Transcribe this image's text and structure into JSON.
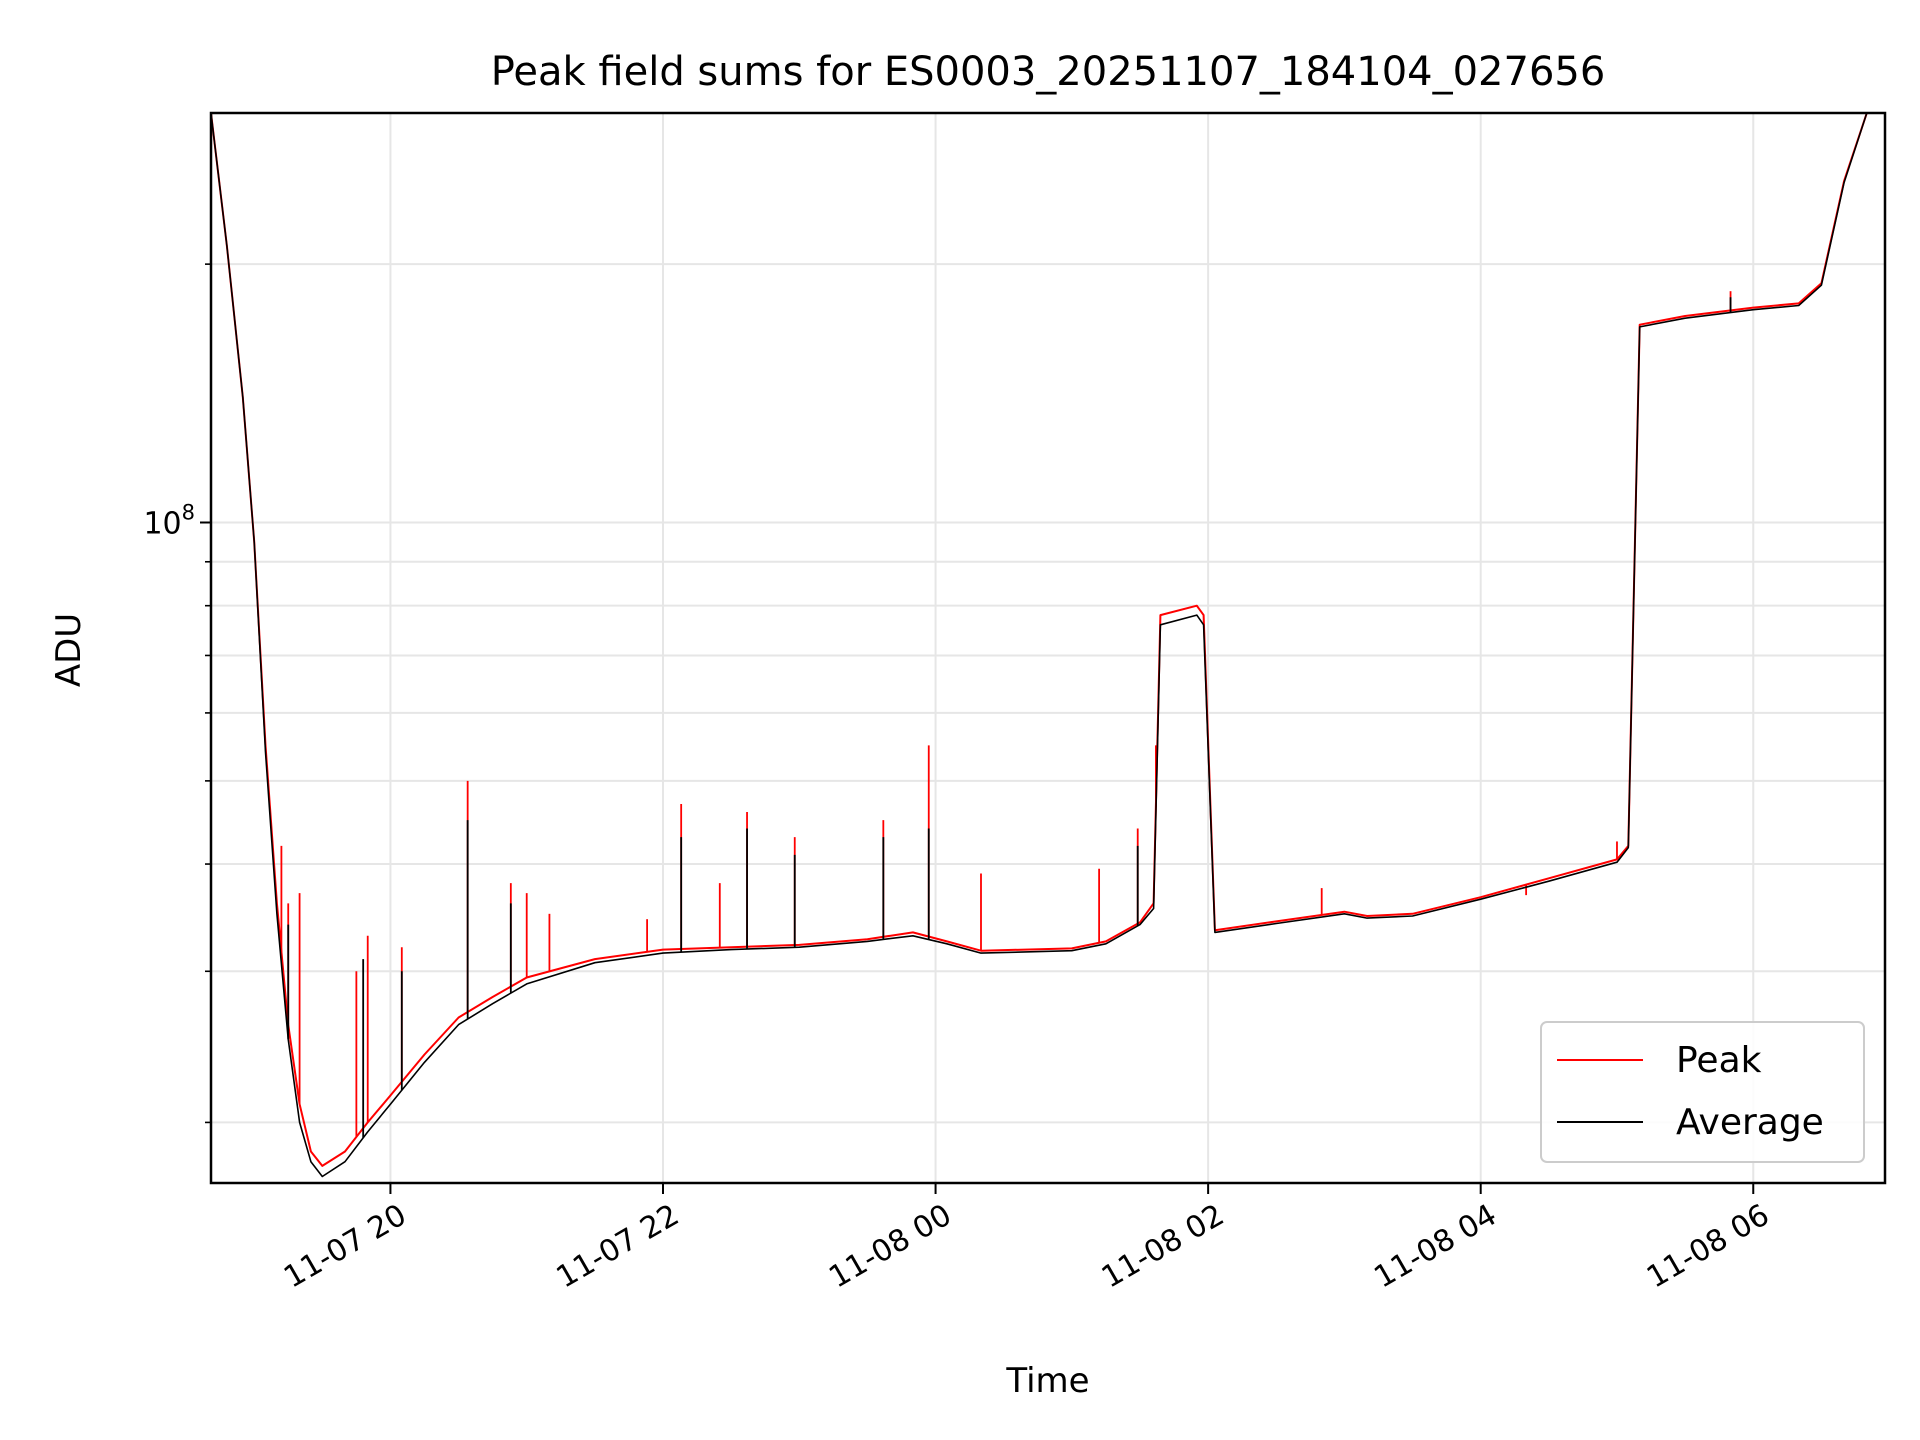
{
  "chart_data": {
    "type": "line",
    "title": "Peak field sums for ES0003_20251107_184104_027656",
    "xlabel": "Time",
    "ylabel": "ADU",
    "y_scale": "log",
    "ylim": [
      17000000,
      300000000
    ],
    "xlim": [
      "2025-11-07 18:41",
      "2025-11-08 06:58"
    ],
    "x_ticks": [
      {
        "t": "2025-11-07 20:00",
        "label": "11-07 20"
      },
      {
        "t": "2025-11-07 22:00",
        "label": "11-07 22"
      },
      {
        "t": "2025-11-08 00:00",
        "label": "11-08 00"
      },
      {
        "t": "2025-11-08 02:00",
        "label": "11-08 02"
      },
      {
        "t": "2025-11-08 04:00",
        "label": "11-08 04"
      },
      {
        "t": "2025-11-08 06:00",
        "label": "11-08 06"
      }
    ],
    "y_major_ticks": [
      {
        "v": 100000000,
        "base": "10",
        "exp": "8"
      }
    ],
    "y_minor_ticks": [
      20000000,
      30000000,
      40000000,
      50000000,
      60000000,
      70000000,
      80000000,
      90000000,
      200000000
    ],
    "grid": true,
    "legend_position": "lower-right",
    "series": [
      {
        "name": "Peak",
        "color": "#ff0000",
        "points": [
          [
            "2025-11-07 18:41",
            300000000
          ],
          [
            "2025-11-07 18:48",
            210000000
          ],
          [
            "2025-11-07 18:55",
            140000000
          ],
          [
            "2025-11-07 19:00",
            95000000
          ],
          [
            "2025-11-07 19:05",
            55000000
          ],
          [
            "2025-11-07 19:10",
            36000000
          ],
          [
            "2025-11-07 19:15",
            26000000
          ],
          [
            "2025-11-07 19:20",
            21000000
          ],
          [
            "2025-11-07 19:25",
            18500000
          ],
          [
            "2025-11-07 19:30",
            17800000
          ],
          [
            "2025-11-07 19:40",
            18500000
          ],
          [
            "2025-11-07 19:50",
            20000000
          ],
          [
            "2025-11-07 20:00",
            21500000
          ],
          [
            "2025-11-07 20:15",
            24000000
          ],
          [
            "2025-11-07 20:30",
            26500000
          ],
          [
            "2025-11-07 20:45",
            28000000
          ],
          [
            "2025-11-07 21:00",
            29500000
          ],
          [
            "2025-11-07 21:30",
            31000000
          ],
          [
            "2025-11-07 22:00",
            31800000
          ],
          [
            "2025-11-07 22:30",
            32000000
          ],
          [
            "2025-11-07 23:00",
            32200000
          ],
          [
            "2025-11-07 23:30",
            32700000
          ],
          [
            "2025-11-07 23:50",
            33300000
          ],
          [
            "2025-11-08 00:05",
            32500000
          ],
          [
            "2025-11-08 00:20",
            31700000
          ],
          [
            "2025-11-08 01:00",
            31900000
          ],
          [
            "2025-11-08 01:15",
            32500000
          ],
          [
            "2025-11-08 01:30",
            34200000
          ],
          [
            "2025-11-08 01:36",
            36000000
          ],
          [
            "2025-11-08 01:39",
            78000000
          ],
          [
            "2025-11-08 01:55",
            80000000
          ],
          [
            "2025-11-08 01:58",
            78000000
          ],
          [
            "2025-11-08 02:03",
            33500000
          ],
          [
            "2025-11-08 02:30",
            34300000
          ],
          [
            "2025-11-08 03:00",
            35200000
          ],
          [
            "2025-11-08 03:10",
            34800000
          ],
          [
            "2025-11-08 03:30",
            35000000
          ],
          [
            "2025-11-08 04:00",
            36600000
          ],
          [
            "2025-11-08 04:30",
            38500000
          ],
          [
            "2025-11-08 05:00",
            40500000
          ],
          [
            "2025-11-08 05:05",
            42000000
          ],
          [
            "2025-11-08 05:10",
            170000000
          ],
          [
            "2025-11-08 05:30",
            174000000
          ],
          [
            "2025-11-08 06:00",
            178000000
          ],
          [
            "2025-11-08 06:20",
            180000000
          ],
          [
            "2025-11-08 06:30",
            190000000
          ],
          [
            "2025-11-08 06:40",
            250000000
          ],
          [
            "2025-11-08 06:50",
            300000000
          ]
        ],
        "spikes": [
          [
            "2025-11-07 19:12",
            42000000
          ],
          [
            "2025-11-07 19:15",
            36000000
          ],
          [
            "2025-11-07 19:20",
            37000000
          ],
          [
            "2025-11-07 19:45",
            30000000
          ],
          [
            "2025-11-07 19:50",
            33000000
          ],
          [
            "2025-11-07 20:05",
            32000000
          ],
          [
            "2025-11-07 20:34",
            50000000
          ],
          [
            "2025-11-07 20:53",
            38000000
          ],
          [
            "2025-11-07 21:00",
            37000000
          ],
          [
            "2025-11-07 21:10",
            35000000
          ],
          [
            "2025-11-07 21:53",
            34500000
          ],
          [
            "2025-11-07 22:08",
            47000000
          ],
          [
            "2025-11-07 22:25",
            38000000
          ],
          [
            "2025-11-07 22:37",
            46000000
          ],
          [
            "2025-11-07 22:58",
            43000000
          ],
          [
            "2025-11-07 23:37",
            45000000
          ],
          [
            "2025-11-07 23:57",
            55000000
          ],
          [
            "2025-11-08 00:20",
            39000000
          ],
          [
            "2025-11-08 01:12",
            39500000
          ],
          [
            "2025-11-08 01:29",
            44000000
          ],
          [
            "2025-11-08 01:37",
            55000000
          ],
          [
            "2025-11-08 02:50",
            37500000
          ],
          [
            "2025-11-08 04:20",
            36800000
          ],
          [
            "2025-11-08 05:00",
            42500000
          ],
          [
            "2025-11-08 05:50",
            186000000
          ]
        ]
      },
      {
        "name": "Average",
        "color": "#000000",
        "points": [
          [
            "2025-11-07 18:41",
            300000000
          ],
          [
            "2025-11-07 18:48",
            210000000
          ],
          [
            "2025-11-07 18:55",
            140000000
          ],
          [
            "2025-11-07 19:00",
            95000000
          ],
          [
            "2025-11-07 19:05",
            54000000
          ],
          [
            "2025-11-07 19:10",
            35000000
          ],
          [
            "2025-11-07 19:15",
            25000000
          ],
          [
            "2025-11-07 19:20",
            20000000
          ],
          [
            "2025-11-07 19:25",
            18000000
          ],
          [
            "2025-11-07 19:30",
            17300000
          ],
          [
            "2025-11-07 19:40",
            18000000
          ],
          [
            "2025-11-07 19:50",
            19500000
          ],
          [
            "2025-11-07 20:00",
            21000000
          ],
          [
            "2025-11-07 20:15",
            23500000
          ],
          [
            "2025-11-07 20:30",
            26000000
          ],
          [
            "2025-11-07 20:45",
            27500000
          ],
          [
            "2025-11-07 21:00",
            29000000
          ],
          [
            "2025-11-07 21:30",
            30700000
          ],
          [
            "2025-11-07 22:00",
            31500000
          ],
          [
            "2025-11-07 22:30",
            31800000
          ],
          [
            "2025-11-07 23:00",
            32000000
          ],
          [
            "2025-11-07 23:30",
            32500000
          ],
          [
            "2025-11-07 23:50",
            33000000
          ],
          [
            "2025-11-08 00:05",
            32300000
          ],
          [
            "2025-11-08 00:20",
            31500000
          ],
          [
            "2025-11-08 01:00",
            31700000
          ],
          [
            "2025-11-08 01:15",
            32300000
          ],
          [
            "2025-11-08 01:30",
            34000000
          ],
          [
            "2025-11-08 01:36",
            35500000
          ],
          [
            "2025-11-08 01:39",
            76000000
          ],
          [
            "2025-11-08 01:55",
            78000000
          ],
          [
            "2025-11-08 01:58",
            76000000
          ],
          [
            "2025-11-08 02:03",
            33300000
          ],
          [
            "2025-11-08 02:30",
            34100000
          ],
          [
            "2025-11-08 03:00",
            35000000
          ],
          [
            "2025-11-08 03:10",
            34600000
          ],
          [
            "2025-11-08 03:30",
            34800000
          ],
          [
            "2025-11-08 04:00",
            36400000
          ],
          [
            "2025-11-08 04:30",
            38200000
          ],
          [
            "2025-11-08 05:00",
            40200000
          ],
          [
            "2025-11-08 05:05",
            41800000
          ],
          [
            "2025-11-08 05:10",
            169000000
          ],
          [
            "2025-11-08 05:30",
            173000000
          ],
          [
            "2025-11-08 06:00",
            177000000
          ],
          [
            "2025-11-08 06:20",
            179000000
          ],
          [
            "2025-11-08 06:30",
            189000000
          ],
          [
            "2025-11-08 06:40",
            249000000
          ],
          [
            "2025-11-08 06:50",
            300000000
          ]
        ],
        "spikes": [
          [
            "2025-11-07 19:15",
            34000000
          ],
          [
            "2025-11-07 19:48",
            31000000
          ],
          [
            "2025-11-07 20:05",
            30000000
          ],
          [
            "2025-11-07 20:34",
            45000000
          ],
          [
            "2025-11-07 20:53",
            36000000
          ],
          [
            "2025-11-07 22:08",
            43000000
          ],
          [
            "2025-11-07 22:37",
            44000000
          ],
          [
            "2025-11-07 22:58",
            41000000
          ],
          [
            "2025-11-07 23:37",
            43000000
          ],
          [
            "2025-11-07 23:57",
            44000000
          ],
          [
            "2025-11-08 01:29",
            42000000
          ],
          [
            "2025-11-08 05:50",
            183000000
          ]
        ]
      }
    ]
  }
}
